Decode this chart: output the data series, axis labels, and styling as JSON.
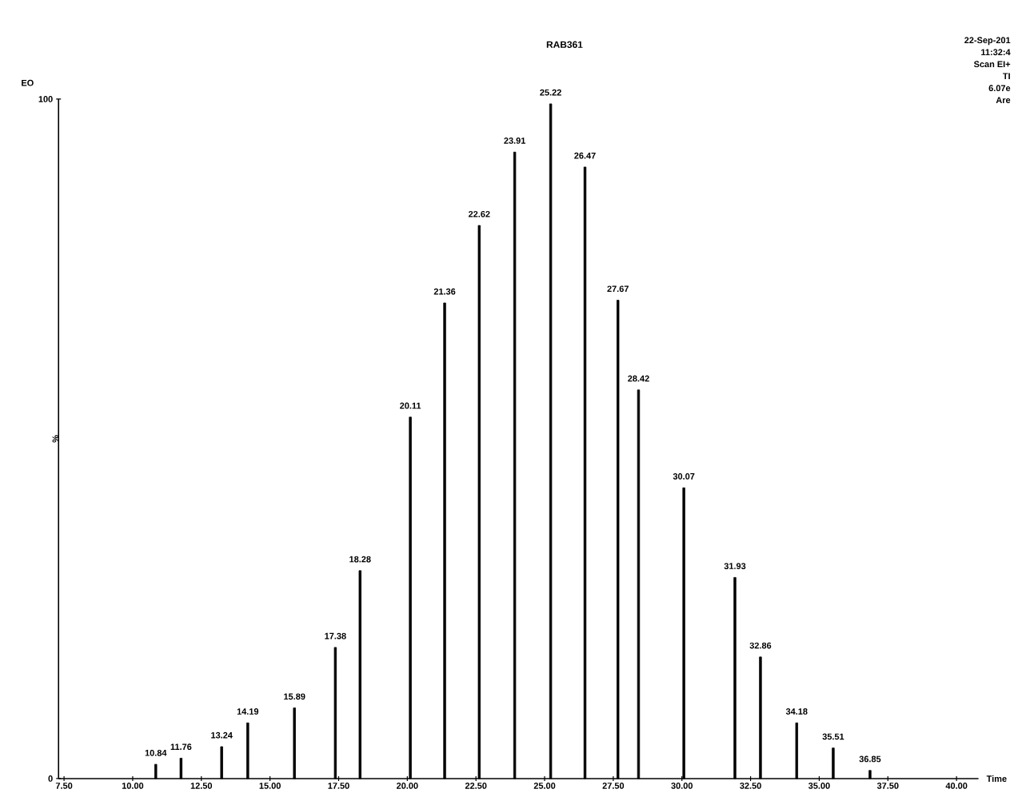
{
  "chart_data": {
    "type": "bar",
    "title": "RAB361",
    "xlabel": "Time",
    "ylabel": "%",
    "annotations": [
      "EO",
      "22-Sep-201",
      "11:32:4",
      "Scan EI+",
      "TI",
      "6.07e",
      "Are",
      {
        "text": "10.84",
        "x": 10.84,
        "y": 2.1
      },
      {
        "text": "11.76",
        "x": 11.76,
        "y": 3.0
      },
      {
        "text": "13.24",
        "x": 13.24,
        "y": 4.7
      },
      {
        "text": "14.19",
        "x": 14.19,
        "y": 8.2
      },
      {
        "text": "15.89",
        "x": 15.89,
        "y": 10.4
      },
      {
        "text": "17.38",
        "x": 17.38,
        "y": 19.3
      },
      {
        "text": "18.28",
        "x": 18.28,
        "y": 30.6
      },
      {
        "text": "20.11",
        "x": 20.11,
        "y": 53.2
      },
      {
        "text": "21.36",
        "x": 21.36,
        "y": 70
      },
      {
        "text": "22.62",
        "x": 22.62,
        "y": 81.4
      },
      {
        "text": "23.91",
        "x": 23.91,
        "y": 92.2
      },
      {
        "text": "25.22",
        "x": 25.22,
        "y": 99.3
      },
      {
        "text": "26.47",
        "x": 26.47,
        "y": 90
      },
      {
        "text": "27.67",
        "x": 27.67,
        "y": 70.4
      },
      {
        "text": "28.42",
        "x": 28.42,
        "y": 57.2
      },
      {
        "text": "30.07",
        "x": 30.07,
        "y": 42.8
      },
      {
        "text": "31.93",
        "x": 31.93,
        "y": 29.6
      },
      {
        "text": "32.86",
        "x": 32.86,
        "y": 17.9
      },
      {
        "text": "34.18",
        "x": 34.18,
        "y": 8.2
      },
      {
        "text": "35.51",
        "x": 35.51,
        "y": 4.5
      },
      {
        "text": "36.85",
        "x": 36.85,
        "y": 1.2
      }
    ],
    "x": [
      10.84,
      11.76,
      13.24,
      14.19,
      15.89,
      17.38,
      18.28,
      20.11,
      21.36,
      22.62,
      23.91,
      25.22,
      26.47,
      27.67,
      28.42,
      30.07,
      31.93,
      32.86,
      34.18,
      35.51,
      36.85
    ],
    "values": [
      2.1,
      3.0,
      4.7,
      8.2,
      10.4,
      19.3,
      30.6,
      53.2,
      70,
      81.4,
      92.2,
      99.3,
      90,
      70.4,
      57.2,
      42.8,
      29.6,
      17.9,
      8.2,
      4.5,
      1.2
    ],
    "color": "#000000",
    "xlim": [
      7.3,
      40.8
    ],
    "ylim": [
      0,
      100
    ],
    "xticks": [
      {
        "value": 7.5,
        "label": "7.50"
      },
      {
        "value": 10,
        "label": "10.00"
      },
      {
        "value": 12.5,
        "label": "12.50"
      },
      {
        "value": 15,
        "label": "15.00"
      },
      {
        "value": 17.5,
        "label": "17.50"
      },
      {
        "value": 20,
        "label": "20.00"
      },
      {
        "value": 22.5,
        "label": "22.50"
      },
      {
        "value": 25,
        "label": "25.00"
      },
      {
        "value": 27.5,
        "label": "27.50"
      },
      {
        "value": 30,
        "label": "30.00"
      },
      {
        "value": 32.5,
        "label": "32.50"
      },
      {
        "value": 35,
        "label": "35.00"
      },
      {
        "value": 37.5,
        "label": "37.50"
      },
      {
        "value": 40,
        "label": "40.00"
      }
    ],
    "yticks": [
      0,
      100
    ],
    "grid": false
  }
}
